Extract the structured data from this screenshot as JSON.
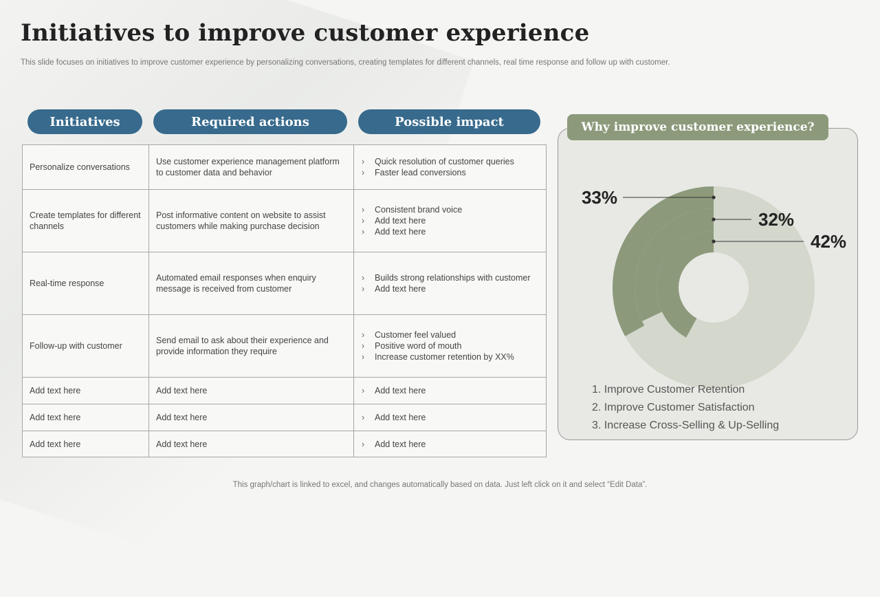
{
  "title": "Initiatives to improve customer experience",
  "subtitle": "This slide focuses on initiatives to improve customer experience by personalizing conversations, creating templates for different channels, real time response and follow up with customer.",
  "headers": [
    "Initiatives",
    "Required actions",
    "Possible impact"
  ],
  "rows": [
    {
      "initiative": "Personalize conversations",
      "action": "Use customer experience management platform to customer data and behavior",
      "impacts": [
        "Quick resolution of customer queries",
        "Faster lead conversions"
      ]
    },
    {
      "initiative": "Create templates for different channels",
      "action": "Post informative  content on website to assist customers while making purchase decision",
      "impacts": [
        "Consistent brand voice",
        "Add text here",
        "Add text here"
      ]
    },
    {
      "initiative": "Real-time response",
      "action": "Automated email responses when enquiry message is received from customer",
      "impacts": [
        "Builds strong relationships with customer",
        "Add text here"
      ]
    },
    {
      "initiative": "Follow-up with customer",
      "action": "Send email to ask about their experience and provide  information they require",
      "impacts": [
        "Customer feel valued",
        "Positive word of mouth",
        "Increase customer retention by XX%"
      ]
    },
    {
      "initiative": "Add text here",
      "action": "Add text here",
      "impacts": [
        "Add text here"
      ]
    },
    {
      "initiative": "Add text here",
      "action": "Add text here",
      "impacts": [
        "Add text here"
      ]
    },
    {
      "initiative": "Add text here",
      "action": "Add text here",
      "impacts": [
        "Add text here"
      ]
    }
  ],
  "panel": {
    "title": "Why improve customer experience?",
    "legend": [
      "1. Improve Customer Retention",
      "2. Improve Customer Satisfaction",
      "3. Increase Cross-Selling & Up-Selling"
    ]
  },
  "chart_data": {
    "type": "radial-bar",
    "unit": "%",
    "series": [
      {
        "label": "33%",
        "value": 33,
        "color": "#8c9a7b"
      },
      {
        "label": "32%",
        "value": 32,
        "color": "#8c9a7b"
      },
      {
        "label": "42%",
        "value": 42,
        "color": "#8c9a7b"
      }
    ],
    "track_color": "#d3d7cc"
  },
  "footer": "This graph/chart is linked to excel,  and changes automatically based on data. Just left click on it and select “Edit Data”."
}
